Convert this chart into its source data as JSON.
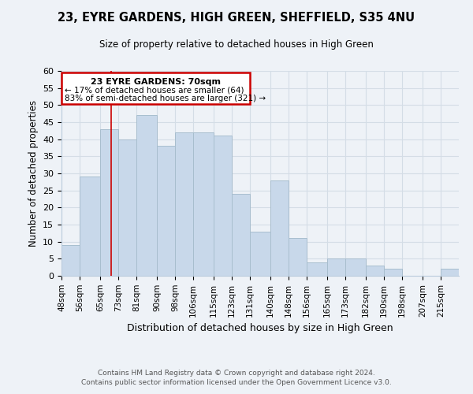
{
  "title_line1": "23, EYRE GARDENS, HIGH GREEN, SHEFFIELD, S35 4NU",
  "title_line2": "Size of property relative to detached houses in High Green",
  "xlabel": "Distribution of detached houses by size in High Green",
  "ylabel": "Number of detached properties",
  "bar_color": "#c8d8ea",
  "bar_edge_color": "#a8bece",
  "grid_color": "#d4dde6",
  "annotation_box_color": "#cc0000",
  "annotation_text_line1": "23 EYRE GARDENS: 70sqm",
  "annotation_text_line2": "← 17% of detached houses are smaller (64)",
  "annotation_text_line3": "83% of semi-detached houses are larger (321) →",
  "vertical_line_x": 70,
  "vertical_line_color": "#cc0000",
  "bins": [
    48,
    56,
    65,
    73,
    81,
    90,
    98,
    106,
    115,
    123,
    131,
    140,
    148,
    156,
    165,
    173,
    182,
    190,
    198,
    207,
    215,
    223
  ],
  "counts": [
    9,
    29,
    43,
    40,
    47,
    38,
    42,
    42,
    41,
    24,
    13,
    28,
    11,
    4,
    5,
    5,
    3,
    2,
    0,
    0,
    2,
    0
  ],
  "ylim": [
    0,
    60
  ],
  "yticks": [
    0,
    5,
    10,
    15,
    20,
    25,
    30,
    35,
    40,
    45,
    50,
    55,
    60
  ],
  "tick_labels": [
    "48sqm",
    "56sqm",
    "65sqm",
    "73sqm",
    "81sqm",
    "90sqm",
    "98sqm",
    "106sqm",
    "115sqm",
    "123sqm",
    "131sqm",
    "140sqm",
    "148sqm",
    "156sqm",
    "165sqm",
    "173sqm",
    "182sqm",
    "190sqm",
    "198sqm",
    "207sqm",
    "215sqm"
  ],
  "footer_line1": "Contains HM Land Registry data © Crown copyright and database right 2024.",
  "footer_line2": "Contains public sector information licensed under the Open Government Licence v3.0.",
  "background_color": "#eef2f7"
}
